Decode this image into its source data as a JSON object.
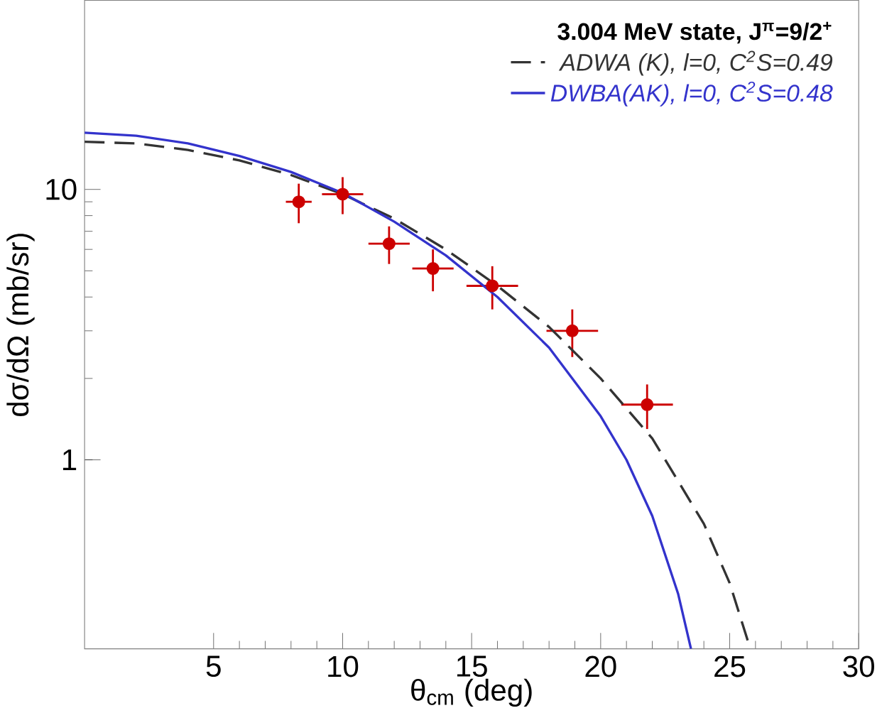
{
  "chart_data": {
    "type": "line",
    "xlabel": "θ$_{cm}$ (deg)",
    "ylabel": "dσ/dΩ (mb/sr)",
    "legend_title": "3.004 MeV state, J$^{π}$=9/2$^{+}$",
    "log": "y",
    "xlim": [
      0,
      30
    ],
    "ylim": [
      0.2,
      50
    ],
    "xticks": [
      5,
      10,
      15,
      20,
      25,
      30
    ],
    "yticks": [
      1,
      10
    ],
    "legend": "top right",
    "grid": false,
    "series": [
      {
        "type": "scatter",
        "color": "#cc0000",
        "marker": "circle",
        "x": [
          8.3,
          10.0,
          11.8,
          13.5,
          15.8,
          18.9,
          21.8
        ],
        "values": [
          9.0,
          9.6,
          6.3,
          5.1,
          4.4,
          3.0,
          1.6
        ],
        "errors": [
          1.5,
          1.5,
          1.0,
          0.9,
          0.8,
          0.6,
          0.3
        ],
        "xerrors": [
          0.5,
          0.8,
          0.8,
          0.8,
          1.0,
          1.0,
          1.0
        ]
      },
      {
        "name": "ADWA (K), l=0, C$^{2}$S=0.49",
        "color": "#333333",
        "line_style": "dashed",
        "x": [
          0,
          2,
          4,
          6,
          8,
          10,
          12,
          14,
          16,
          18,
          20,
          22,
          24,
          25,
          25.8
        ],
        "values": [
          15.0,
          14.8,
          14.0,
          12.8,
          11.3,
          9.6,
          7.8,
          6.0,
          4.4,
          3.1,
          2.0,
          1.2,
          0.58,
          0.35,
          0.2
        ]
      },
      {
        "name": "DWBA(AK), l=0, C$^{2}$S=0.48",
        "color": "#3333cc",
        "line_style": "solid",
        "x": [
          0,
          2,
          4,
          6,
          8,
          10,
          12,
          14,
          16,
          18,
          20,
          21,
          22,
          23,
          23.5
        ],
        "values": [
          16.2,
          15.8,
          14.8,
          13.3,
          11.6,
          9.7,
          7.6,
          5.7,
          4.0,
          2.6,
          1.45,
          1.0,
          0.62,
          0.32,
          0.2
        ]
      }
    ]
  }
}
